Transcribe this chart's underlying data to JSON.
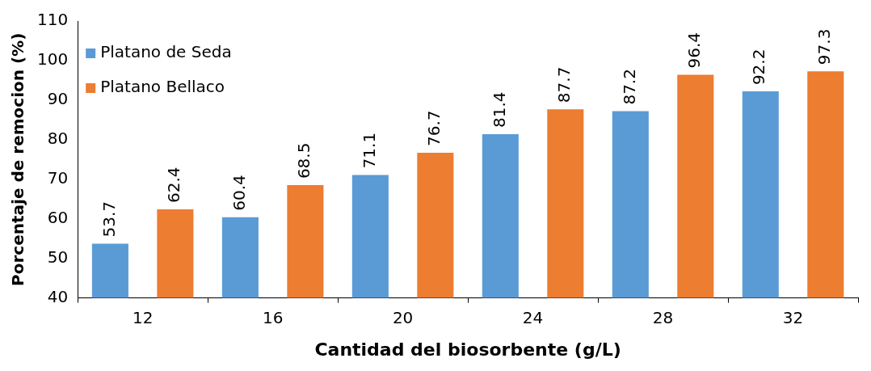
{
  "chart_data": {
    "type": "bar",
    "xlabel": "Cantidad del biosorbente (g/L)",
    "ylabel": "Porcentaje de remocion (%)",
    "categories": [
      "12",
      "16",
      "20",
      "24",
      "28",
      "32"
    ],
    "series": [
      {
        "name": "Platano de Seda",
        "color": "#5b9bd5",
        "values": [
          53.7,
          60.4,
          71.1,
          81.4,
          87.2,
          92.2
        ]
      },
      {
        "name": "Platano Bellaco",
        "color": "#ed7d31",
        "values": [
          62.4,
          68.5,
          76.7,
          87.7,
          96.4,
          97.3
        ]
      }
    ],
    "ylim": [
      40,
      110
    ],
    "yticks": [
      40,
      50,
      60,
      70,
      80,
      90,
      100,
      110
    ],
    "grid": false,
    "legend": "top left",
    "data_labels": true
  }
}
